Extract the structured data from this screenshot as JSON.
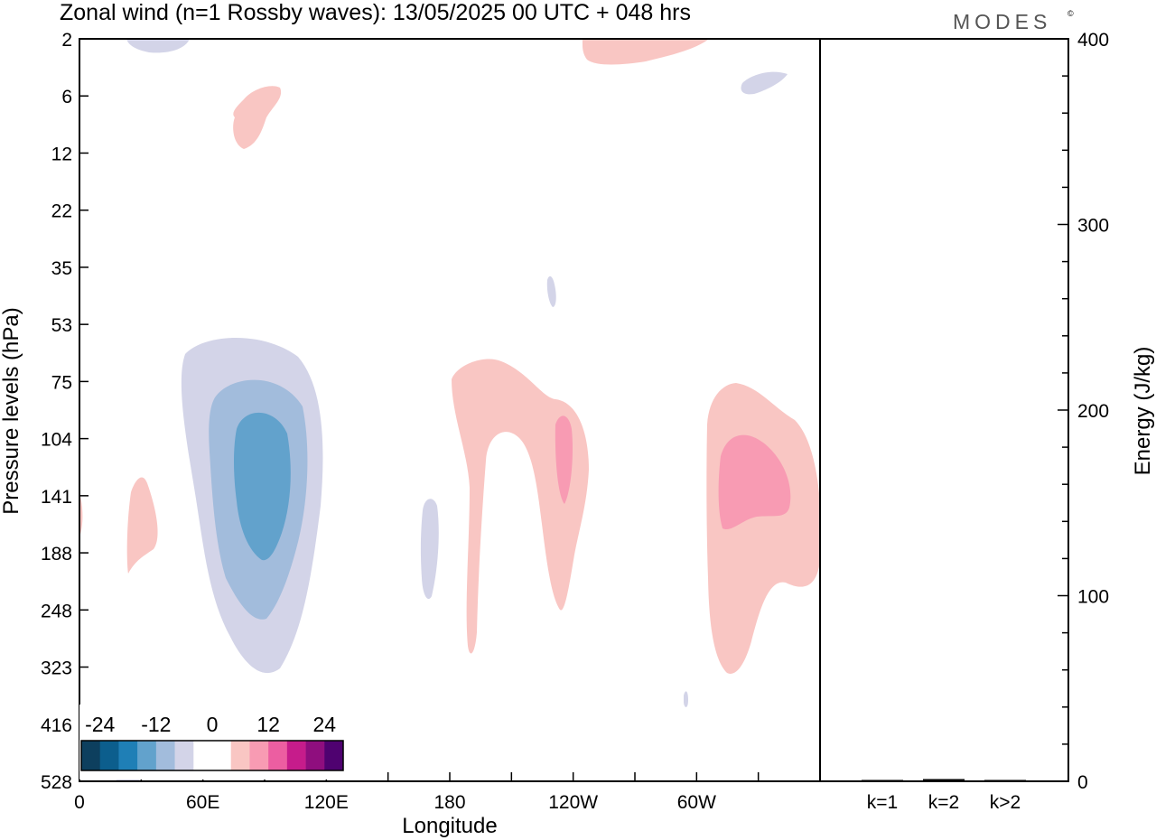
{
  "title": "Zonal wind (n=1 Rossby waves):  13/05/2025  00 UTC  + 048 hrs",
  "logo": {
    "text": "MODES",
    "mark": "©"
  },
  "chart_data": [
    {
      "type": "heatmap",
      "subtype": "filled-contour",
      "xlabel": "Longitude",
      "ylabel": "Pressure levels (hPa)",
      "x_ticks": [
        "0",
        "60E",
        "120E",
        "180",
        "120W",
        "60W"
      ],
      "x_tick_degrees": [
        0,
        60,
        120,
        180,
        240,
        300
      ],
      "x_range_degrees": [
        0,
        360
      ],
      "y_ticks": [
        "2",
        "6",
        "12",
        "22",
        "35",
        "53",
        "75",
        "104",
        "141",
        "188",
        "248",
        "323",
        "416",
        "528"
      ],
      "y_scale": "pressure levels",
      "contour_levels": [
        -28,
        -24,
        -20,
        -16,
        -12,
        -8,
        -4,
        4,
        8,
        12,
        16,
        20,
        24,
        28
      ],
      "colorbar": {
        "tick_labels": [
          "-24",
          "-12",
          "0",
          "12",
          "24"
        ],
        "colors": [
          "#0d3f5e",
          "#0c5e8d",
          "#1f7fb6",
          "#62a2cc",
          "#a2bcdc",
          "#d3d4e8",
          "#ffffff",
          "#ffffff",
          "#f9c6c3",
          "#f89bb3",
          "#ec5ea1",
          "#c61c8b",
          "#8f0e7e",
          "#4f0270"
        ]
      },
      "features": [
        {
          "sign": "negative",
          "level_range": "-16 to -12",
          "center_lon": 90,
          "center_level": "141"
        },
        {
          "sign": "negative",
          "level_range": "-8 to -4",
          "center_lon": 170,
          "center_level": "188"
        },
        {
          "sign": "positive",
          "level_range": "4 to 8",
          "center_lon": 200,
          "center_level": "141"
        },
        {
          "sign": "positive",
          "level_range": "8 to 12",
          "center_lon": 235,
          "center_level": "141"
        },
        {
          "sign": "positive",
          "level_range": "8 to 12",
          "center_lon": 325,
          "center_level": "141"
        },
        {
          "sign": "positive",
          "level_range": "4 to 8",
          "center_lon": 30,
          "center_level": "188"
        },
        {
          "sign": "positive",
          "level_range": "4 to 8",
          "center_lon": 85,
          "center_level": "6"
        },
        {
          "sign": "positive",
          "level_range": "4 to 8",
          "center_lon": 275,
          "center_level": "2"
        }
      ]
    },
    {
      "type": "bar",
      "categories": [
        "k=1",
        "k=2",
        "k>2"
      ],
      "values": [
        0.5,
        1.2,
        0.6
      ],
      "ylabel": "Energy (J/kg)",
      "y_ticks": [
        "0",
        "100",
        "200",
        "300",
        "400"
      ],
      "ylim": [
        0,
        400
      ]
    }
  ]
}
